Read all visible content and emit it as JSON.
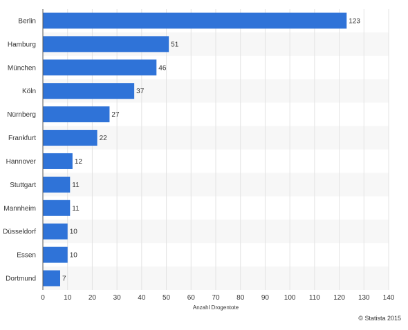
{
  "chart_data": {
    "type": "bar",
    "orientation": "horizontal",
    "categories": [
      "Berlin",
      "Hamburg",
      "München",
      "Köln",
      "Nürnberg",
      "Frankfurt",
      "Hannover",
      "Stuttgart",
      "Mannheim",
      "Düsseldorf",
      "Essen",
      "Dortmund"
    ],
    "values": [
      123,
      51,
      46,
      37,
      27,
      22,
      12,
      11,
      11,
      10,
      10,
      7
    ],
    "title": "",
    "xlabel": "Anzahl Drogentote",
    "ylabel": "",
    "xlim": [
      0,
      140
    ],
    "xticks": [
      0,
      10,
      20,
      30,
      40,
      50,
      60,
      70,
      80,
      90,
      100,
      110,
      120,
      130,
      140
    ],
    "grid": true,
    "legend": "none",
    "bar_color": "#2f73d8",
    "band_color": "#f7f7f7",
    "grid_color": "#e3e3e3"
  },
  "footer": {
    "credit": "© Statista 2015"
  }
}
